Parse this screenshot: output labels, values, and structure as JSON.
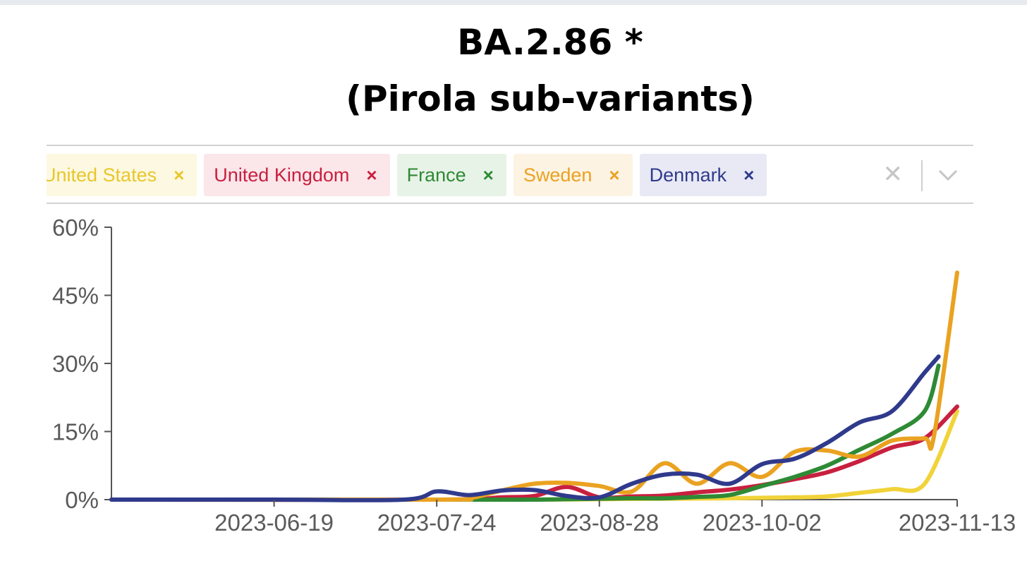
{
  "title": "BA.2.86 *",
  "subtitle": "(Pirola sub-variants)",
  "filters": [
    {
      "label": "United States",
      "color": "#e8c72c",
      "bg": "#fdf8e1"
    },
    {
      "label": "United Kingdom",
      "color": "#c8203f",
      "bg": "#fbe6ea"
    },
    {
      "label": "France",
      "color": "#2e8a35",
      "bg": "#e8f3e8"
    },
    {
      "label": "Sweden",
      "color": "#eaa221",
      "bg": "#fdf3e3"
    },
    {
      "label": "Denmark",
      "color": "#2f3a8c",
      "bg": "#e8e9f4"
    }
  ],
  "filter_remove_glyph": "×",
  "clear_all_glyph": "✕",
  "chart_data": {
    "type": "line",
    "x_axis": "date",
    "x_ticks": [
      "2023-06-19",
      "2023-07-24",
      "2023-08-28",
      "2023-10-02",
      "2023-11-13"
    ],
    "y_ticks": [
      "0%",
      "15%",
      "30%",
      "45%",
      "60%"
    ],
    "ylim": [
      0,
      60
    ],
    "xlim": [
      "2023-05-15",
      "2023-11-13"
    ],
    "grid": false,
    "legend": "top",
    "series": [
      {
        "name": "United States",
        "color": "#f1d339",
        "points": [
          [
            "2023-05-15",
            0
          ],
          [
            "2023-06-19",
            0
          ],
          [
            "2023-07-24",
            0
          ],
          [
            "2023-08-14",
            0
          ],
          [
            "2023-08-28",
            0.1
          ],
          [
            "2023-09-11",
            0.2
          ],
          [
            "2023-09-25",
            0.3
          ],
          [
            "2023-10-09",
            0.5
          ],
          [
            "2023-10-16",
            0.7
          ],
          [
            "2023-10-23",
            1.5
          ],
          [
            "2023-10-30",
            2.3
          ],
          [
            "2023-11-06",
            3.5
          ],
          [
            "2023-11-13",
            19.5
          ]
        ]
      },
      {
        "name": "United Kingdom",
        "color": "#c8203f",
        "points": [
          [
            "2023-05-15",
            0
          ],
          [
            "2023-07-24",
            0
          ],
          [
            "2023-08-07",
            0.5
          ],
          [
            "2023-08-14",
            0.8
          ],
          [
            "2023-08-21",
            2.8
          ],
          [
            "2023-08-28",
            0.5
          ],
          [
            "2023-09-04",
            0.7
          ],
          [
            "2023-09-11",
            0.9
          ],
          [
            "2023-09-18",
            1.6
          ],
          [
            "2023-09-25",
            2.2
          ],
          [
            "2023-10-02",
            3.2
          ],
          [
            "2023-10-09",
            4.5
          ],
          [
            "2023-10-16",
            6.0
          ],
          [
            "2023-10-23",
            8.5
          ],
          [
            "2023-10-30",
            11.5
          ],
          [
            "2023-11-06",
            13.5
          ],
          [
            "2023-11-13",
            20.5
          ]
        ]
      },
      {
        "name": "France",
        "color": "#2e8a35",
        "points": [
          [
            "2023-05-15",
            0
          ],
          [
            "2023-07-31",
            0
          ],
          [
            "2023-08-14",
            0
          ],
          [
            "2023-08-28",
            0.2
          ],
          [
            "2023-09-04",
            0.3
          ],
          [
            "2023-09-11",
            0.3
          ],
          [
            "2023-09-18",
            0.6
          ],
          [
            "2023-09-25",
            1.0
          ],
          [
            "2023-10-02",
            3.0
          ],
          [
            "2023-10-09",
            5.0
          ],
          [
            "2023-10-16",
            7.5
          ],
          [
            "2023-10-23",
            11.0
          ],
          [
            "2023-10-30",
            14.5
          ],
          [
            "2023-11-06",
            19.5
          ],
          [
            "2023-11-09",
            29.5
          ]
        ]
      },
      {
        "name": "Sweden",
        "color": "#eaa221",
        "points": [
          [
            "2023-05-15",
            0
          ],
          [
            "2023-07-24",
            0
          ],
          [
            "2023-07-31",
            0.3
          ],
          [
            "2023-08-07",
            2.0
          ],
          [
            "2023-08-14",
            3.5
          ],
          [
            "2023-08-21",
            3.7
          ],
          [
            "2023-08-28",
            3.0
          ],
          [
            "2023-09-04",
            1.8
          ],
          [
            "2023-09-11",
            8.0
          ],
          [
            "2023-09-18",
            3.5
          ],
          [
            "2023-09-25",
            8.0
          ],
          [
            "2023-10-02",
            5.0
          ],
          [
            "2023-10-09",
            10.5
          ],
          [
            "2023-10-16",
            10.8
          ],
          [
            "2023-10-23",
            9.5
          ],
          [
            "2023-10-30",
            13.0
          ],
          [
            "2023-11-06",
            13.5
          ],
          [
            "2023-11-08",
            14.0
          ],
          [
            "2023-11-13",
            50.0
          ]
        ]
      },
      {
        "name": "Denmark",
        "color": "#2f3a8c",
        "points": [
          [
            "2023-05-15",
            0
          ],
          [
            "2023-06-19",
            0
          ],
          [
            "2023-07-17",
            0
          ],
          [
            "2023-07-24",
            1.8
          ],
          [
            "2023-07-31",
            1.0
          ],
          [
            "2023-08-07",
            2.0
          ],
          [
            "2023-08-14",
            2.1
          ],
          [
            "2023-08-21",
            0.8
          ],
          [
            "2023-08-28",
            0.5
          ],
          [
            "2023-09-04",
            3.5
          ],
          [
            "2023-09-11",
            5.5
          ],
          [
            "2023-09-18",
            5.5
          ],
          [
            "2023-09-25",
            3.5
          ],
          [
            "2023-10-02",
            7.8
          ],
          [
            "2023-10-09",
            9.0
          ],
          [
            "2023-10-16",
            12.5
          ],
          [
            "2023-10-23",
            17.0
          ],
          [
            "2023-10-30",
            19.5
          ],
          [
            "2023-11-06",
            28.0
          ],
          [
            "2023-11-09",
            31.5
          ]
        ]
      }
    ]
  }
}
